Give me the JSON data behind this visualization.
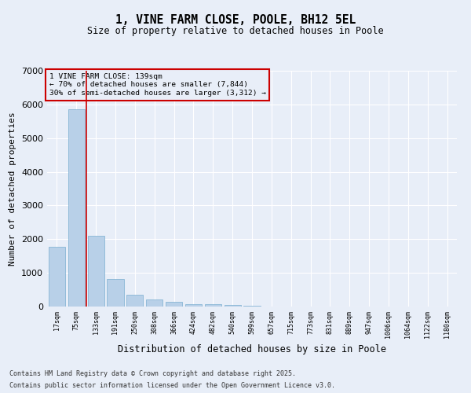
{
  "title": "1, VINE FARM CLOSE, POOLE, BH12 5EL",
  "subtitle": "Size of property relative to detached houses in Poole",
  "xlabel": "Distribution of detached houses by size in Poole",
  "ylabel": "Number of detached properties",
  "bar_color": "#b8d0e8",
  "bar_edge_color": "#7aaed0",
  "background_color": "#e8eef8",
  "grid_color": "#ffffff",
  "annotation_box_color": "#cc0000",
  "annotation_line1": "1 VINE FARM CLOSE: 139sqm",
  "annotation_line2": "← 70% of detached houses are smaller (7,844)",
  "annotation_line3": "30% of semi-detached houses are larger (3,312) →",
  "categories": [
    "17sqm",
    "75sqm",
    "133sqm",
    "191sqm",
    "250sqm",
    "308sqm",
    "366sqm",
    "424sqm",
    "482sqm",
    "540sqm",
    "599sqm",
    "657sqm",
    "715sqm",
    "773sqm",
    "831sqm",
    "889sqm",
    "947sqm",
    "1006sqm",
    "1064sqm",
    "1122sqm",
    "1180sqm"
  ],
  "values": [
    1780,
    5850,
    2090,
    810,
    350,
    220,
    140,
    80,
    65,
    50,
    30,
    0,
    0,
    0,
    0,
    0,
    0,
    0,
    0,
    0,
    0
  ],
  "ylim": [
    0,
    7000
  ],
  "yticks": [
    0,
    1000,
    2000,
    3000,
    4000,
    5000,
    6000,
    7000
  ],
  "vline_x": 1.5,
  "footer_line1": "Contains HM Land Registry data © Crown copyright and database right 2025.",
  "footer_line2": "Contains public sector information licensed under the Open Government Licence v3.0."
}
